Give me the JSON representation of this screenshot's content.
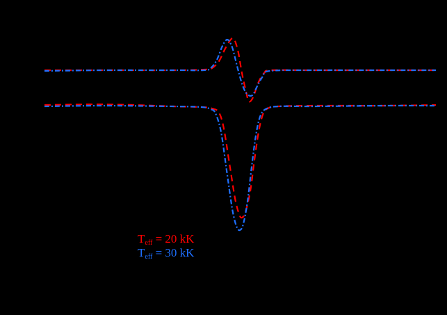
{
  "chart_data": {
    "type": "line",
    "title": "",
    "xlabel": "",
    "ylabel": "",
    "grid": false,
    "legend_position": "lower left",
    "background": "#000000",
    "notes": "Axes, ticks and labels are rendered black on black and not visible; values below are in pixel-space units of the plot.",
    "panels": [
      {
        "name": "upper-profile",
        "baseline_y": 101,
        "series": [
          {
            "name": "Teff = 20 kK",
            "color": "#ff0000",
            "style": "dashed",
            "points": [
              [
                64,
                101
              ],
              [
                150,
                101
              ],
              [
                250,
                101
              ],
              [
                295,
                100
              ],
              [
                305,
                98
              ],
              [
                315,
                88
              ],
              [
                325,
                68
              ],
              [
                335,
                55
              ],
              [
                342,
                72
              ],
              [
                348,
                105
              ],
              [
                354,
                132
              ],
              [
                358,
                146
              ],
              [
                364,
                140
              ],
              [
                372,
                118
              ],
              [
                380,
                105
              ],
              [
                390,
                101
              ],
              [
                450,
                101
              ],
              [
                550,
                101
              ],
              [
                627,
                101
              ]
            ]
          },
          {
            "name": "Teff = 30 kK",
            "color": "#1e6fff",
            "style": "dashdot",
            "points": [
              [
                64,
                102
              ],
              [
                150,
                101
              ],
              [
                250,
                101
              ],
              [
                293,
                101
              ],
              [
                303,
                98
              ],
              [
                312,
                86
              ],
              [
                320,
                66
              ],
              [
                327,
                57
              ],
              [
                334,
                68
              ],
              [
                341,
                95
              ],
              [
                348,
                120
              ],
              [
                355,
                135
              ],
              [
                363,
                137
              ],
              [
                370,
                124
              ],
              [
                378,
                110
              ],
              [
                388,
                102
              ],
              [
                450,
                101
              ],
              [
                550,
                101
              ],
              [
                627,
                101
              ]
            ]
          }
        ]
      },
      {
        "name": "lower-profile",
        "baseline_y": 152,
        "series": [
          {
            "name": "Teff = 20 kK",
            "color": "#ff0000",
            "style": "dashed",
            "points": [
              [
                64,
                151
              ],
              [
                150,
                150
              ],
              [
                250,
                153
              ],
              [
                290,
                154
              ],
              [
                305,
                156
              ],
              [
                315,
                162
              ],
              [
                322,
                185
              ],
              [
                330,
                235
              ],
              [
                338,
                285
              ],
              [
                344,
                308
              ],
              [
                348,
                313
              ],
              [
                353,
                305
              ],
              [
                360,
                275
              ],
              [
                366,
                230
              ],
              [
                372,
                190
              ],
              [
                378,
                165
              ],
              [
                385,
                156
              ],
              [
                400,
                153
              ],
              [
                450,
                152
              ],
              [
                550,
                152
              ],
              [
                627,
                151
              ]
            ]
          },
          {
            "name": "Teff = 30 kK",
            "color": "#1e6fff",
            "style": "dashdot",
            "points": [
              [
                64,
                153
              ],
              [
                150,
                152
              ],
              [
                250,
                153
              ],
              [
                290,
                154
              ],
              [
                303,
                157
              ],
              [
                310,
                163
              ],
              [
                318,
                190
              ],
              [
                326,
                245
              ],
              [
                334,
                300
              ],
              [
                340,
                325
              ],
              [
                345,
                331
              ],
              [
                350,
                322
              ],
              [
                356,
                290
              ],
              [
                362,
                240
              ],
              [
                368,
                195
              ],
              [
                374,
                168
              ],
              [
                382,
                157
              ],
              [
                400,
                153
              ],
              [
                450,
                153
              ],
              [
                550,
                152
              ],
              [
                627,
                152
              ]
            ]
          }
        ]
      }
    ],
    "legend": [
      {
        "label_main": "T",
        "label_sub": "eff",
        "label_rest": " = 20 kK",
        "color": "#ff0000",
        "style": "dashed"
      },
      {
        "label_main": "T",
        "label_sub": "eff",
        "label_rest": " = 30 kK",
        "color": "#1e6fff",
        "style": "dashdot"
      }
    ]
  }
}
